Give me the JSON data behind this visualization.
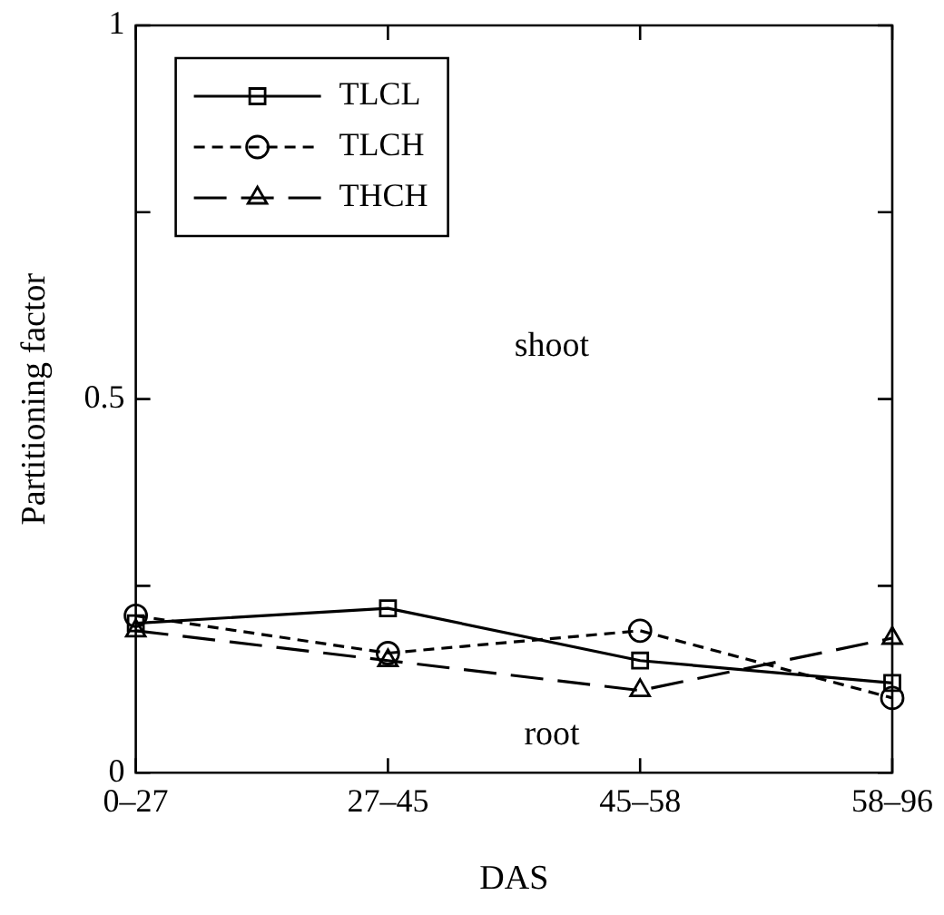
{
  "chart_data": {
    "type": "line",
    "xlabel": "DAS",
    "ylabel": "Partitioning factor",
    "categories": [
      "0–27",
      "27–45",
      "45–58",
      "58–96"
    ],
    "series": [
      {
        "name": "TLCL",
        "color": "#000000",
        "values": [
          0.2,
          0.22,
          0.15,
          0.12
        ],
        "marker": "square",
        "line_style": "solid"
      },
      {
        "name": "TLCH",
        "color": "#000000",
        "values": [
          0.21,
          0.16,
          0.19,
          0.1
        ],
        "marker": "circle",
        "line_style": "dashed"
      },
      {
        "name": "THCH",
        "color": "#000000",
        "values": [
          0.19,
          0.15,
          0.11,
          0.18
        ],
        "marker": "triangle",
        "line_style": "longdash"
      }
    ],
    "ylim": [
      0,
      1
    ],
    "yticks": [
      0,
      {
        "value": 0.25,
        "label": null
      },
      0.5,
      {
        "value": 0.75,
        "label": null
      },
      1
    ],
    "grid": false,
    "legend": "top left",
    "annotations": [
      "shoot",
      "root"
    ]
  }
}
